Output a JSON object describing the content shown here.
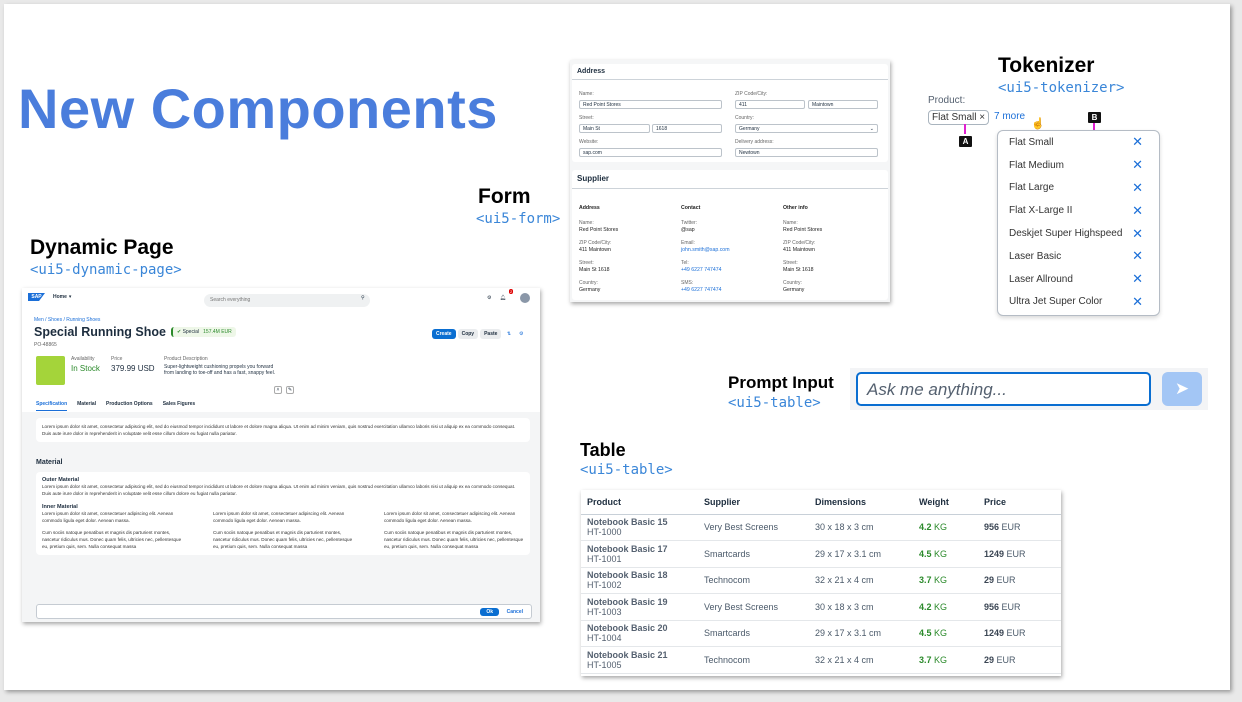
{
  "slide": {
    "title": "New Components"
  },
  "sections": {
    "dynamic_page": {
      "label": "Dynamic Page",
      "tag": "<ui5-dynamic-page>"
    },
    "form": {
      "label": "Form",
      "tag": "<ui5-form>"
    },
    "tokenizer": {
      "label": "Tokenizer",
      "tag": "<ui5-tokenizer>"
    },
    "prompt": {
      "label": "Prompt Input",
      "tag": "<ui5-table>"
    },
    "table": {
      "label": "Table",
      "tag": "<ui5-table>"
    }
  },
  "dynamic_page": {
    "logo": "SAP",
    "home": "Home",
    "search_placeholder": "Search everything",
    "notification_count": "2",
    "breadcrumb": "Men / Shoes / Running Shoes",
    "title": "Special Running Shoe",
    "status": "Special",
    "amount": "157.4M EUR",
    "id": "PO-48865",
    "actions": {
      "create": "Create",
      "copy": "Copy",
      "paste": "Paste"
    },
    "availability_label": "Availability",
    "availability": "In Stock",
    "price_label": "Price",
    "price": "379.99 USD",
    "desc_label": "Product Description",
    "desc": "Super-lightweight cushioning propels you forward from landing to toe-off and has a fast, snappy feel.",
    "tabs": [
      "Specification",
      "Material",
      "Production Options",
      "Sales Figures"
    ],
    "lorem1": "Lorem ipsum dolor sit amet, consectetur adipiscing elit, sed do eiusmod tempor incididunt ut labore et dolore magna aliqua. Ut enim ad minim veniam, quis nostrud exercitation ullamco laboris nisi ut aliquip ex ea commodo consequat. Duis aute irure dolor in reprehenderit in voluptate velit esse cillum dolore eu fugiat nulla pariatur.",
    "material_heading": "Material",
    "outer_heading": "Outer Material",
    "inner_heading": "Inner Material",
    "col_a": "Lorem ipsum dolor sit amet, consectetuer adipiscing elit. Aenean commodo ligula eget dolor. Aenean massa.",
    "col_b": "Cum sociis natoque penatibus et magnis dis parturient montes, nascetur ridiculus mus. Donec quam felis, ultricies nec, pellentesque eu, pretium quis, sem. Nulla consequat massa",
    "ok": "Ok",
    "cancel": "Cancel"
  },
  "form": {
    "address_title": "Address",
    "name_label": "Name:",
    "name": "Red Point Stores",
    "zip_label": "ZIP Code/City:",
    "zip": "411",
    "city": "Maintown",
    "street_label": "Street:",
    "street": "Main St",
    "number": "1618",
    "country_label": "Country:",
    "country": "Germany",
    "website_label": "Website:",
    "website": "sap.com",
    "delivery_label": "Delivery address:",
    "delivery": "Newtown",
    "supplier_title": "Supplier",
    "col_address": "Address",
    "col_contact": "Contact",
    "col_other": "Other info",
    "s_name": "Red Point Stores",
    "s_zipcity": "411 Maintown",
    "s_street": "Main St 1618",
    "s_country": "Germany",
    "twitter_label": "Twitter:",
    "twitter": "@sap",
    "email_label": "Email:",
    "email": "john.smith@sap.com",
    "tel_label": "Tel:",
    "tel": "+49 6227 747474",
    "sms_label": "SMS:",
    "sms": "+49 6227 747474"
  },
  "tokenizer": {
    "label": "Product:",
    "token": "Flat Small",
    "more": "7 more",
    "marker_a": "A",
    "marker_b": "B",
    "items": [
      "Flat Small",
      "Flat Medium",
      "Flat Large",
      "Flat X-Large II",
      "Deskjet Super Highspeed",
      "Laser Basic",
      "Laser Allround",
      "Ultra Jet Super Color"
    ]
  },
  "prompt": {
    "placeholder": "Ask me anything..."
  },
  "table": {
    "headers": [
      "Product",
      "Supplier",
      "Dimensions",
      "Weight",
      "Price"
    ],
    "rows": [
      {
        "name": "Notebook Basic 15",
        "id": "HT-1000",
        "supplier": "Very Best Screens",
        "dim": "30 x 18 x 3 cm",
        "weight": "4.2",
        "wunit": "KG",
        "price": "956",
        "cur": "EUR"
      },
      {
        "name": "Notebook Basic 17",
        "id": "HT-1001",
        "supplier": "Smartcards",
        "dim": "29 x 17 x 3.1 cm",
        "weight": "4.5",
        "wunit": "KG",
        "price": "1249",
        "cur": "EUR"
      },
      {
        "name": "Notebook Basic 18",
        "id": "HT-1002",
        "supplier": "Technocom",
        "dim": "32 x 21 x 4 cm",
        "weight": "3.7",
        "wunit": "KG",
        "price": "29",
        "cur": "EUR"
      },
      {
        "name": "Notebook Basic 19",
        "id": "HT-1003",
        "supplier": "Very Best Screens",
        "dim": "30 x 18 x 3 cm",
        "weight": "4.2",
        "wunit": "KG",
        "price": "956",
        "cur": "EUR"
      },
      {
        "name": "Notebook Basic 20",
        "id": "HT-1004",
        "supplier": "Smartcards",
        "dim": "29 x 17 x 3.1 cm",
        "weight": "4.5",
        "wunit": "KG",
        "price": "1249",
        "cur": "EUR"
      },
      {
        "name": "Notebook Basic 21",
        "id": "HT-1005",
        "supplier": "Technocom",
        "dim": "32 x 21 x 4 cm",
        "weight": "3.7",
        "wunit": "KG",
        "price": "29",
        "cur": "EUR"
      }
    ]
  },
  "colors": {
    "title": "#4a7ddc",
    "tag": "#3a86d8",
    "brand": "#1b6fd8",
    "positive": "#2b8a2b",
    "marker": "#e020d0"
  }
}
